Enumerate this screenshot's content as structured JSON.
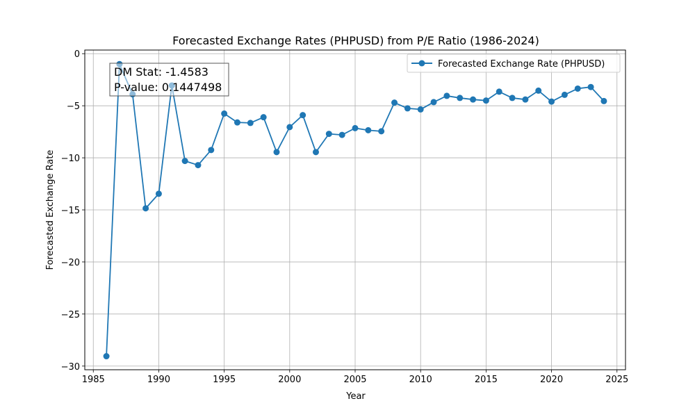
{
  "chart_data": {
    "type": "line",
    "title": "Forecasted Exchange Rates (PHPUSD) from P/E Ratio (1986-2024)",
    "xlabel": "Year",
    "ylabel": "Forecasted Exchange Rate",
    "xlim": [
      1984.35,
      2025.65
    ],
    "ylim": [
      -30.35,
      0.35
    ],
    "xticks": [
      1985,
      1990,
      1995,
      2000,
      2005,
      2010,
      2015,
      2020,
      2025
    ],
    "yticks": [
      0,
      -5,
      -10,
      -15,
      -20,
      -25,
      -30
    ],
    "grid": true,
    "legend_position": "top-right",
    "series": [
      {
        "name": "Forecasted Exchange Rate (PHPUSD)",
        "color": "#1f77b4",
        "marker": "circle",
        "x": [
          1986,
          1987,
          1988,
          1989,
          1990,
          1991,
          1992,
          1993,
          1994,
          1995,
          1996,
          1997,
          1998,
          1999,
          2000,
          2001,
          2002,
          2003,
          2004,
          2005,
          2006,
          2007,
          2008,
          2009,
          2010,
          2011,
          2012,
          2013,
          2014,
          2015,
          2016,
          2017,
          2018,
          2019,
          2020,
          2021,
          2022,
          2023,
          2024
        ],
        "y": [
          -29.05,
          -1.0,
          -3.9,
          -14.85,
          -13.45,
          -3.05,
          -10.3,
          -10.7,
          -9.25,
          -5.75,
          -6.6,
          -6.65,
          -6.1,
          -9.45,
          -7.05,
          -5.9,
          -9.45,
          -7.7,
          -7.8,
          -7.15,
          -7.35,
          -7.45,
          -4.7,
          -5.25,
          -5.35,
          -4.65,
          -4.05,
          -4.25,
          -4.4,
          -4.5,
          -3.65,
          -4.25,
          -4.4,
          -3.55,
          -4.6,
          -3.95,
          -3.35,
          -3.2,
          -4.55
        ]
      }
    ],
    "annotation": {
      "lines": [
        "DM Stat: -1.4583",
        "P-value: 0.1447498"
      ]
    }
  }
}
